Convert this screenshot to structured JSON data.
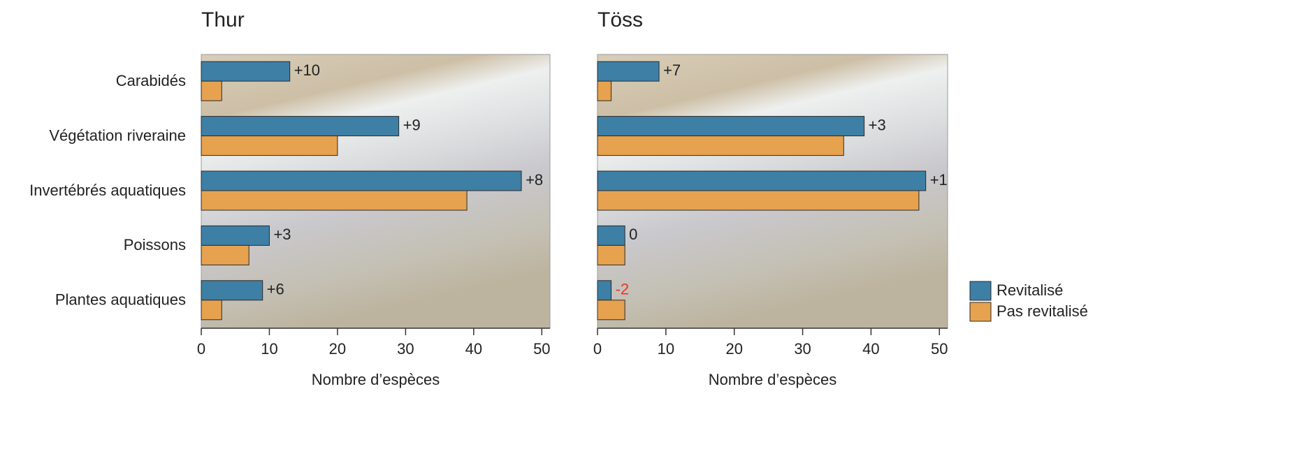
{
  "chart_data": [
    {
      "type": "barh",
      "title": "Thur",
      "xlabel": "Nombre d’espèces",
      "categories": [
        "Carabidés",
        "Végétation riveraine",
        "Invertébrés aquatiques",
        "Poissons",
        "Plantes aquatiques"
      ],
      "series": [
        {
          "color": "#3e7fa5",
          "values": [
            13,
            29,
            47,
            10,
            9
          ]
        },
        {
          "color": "#e6a24f",
          "values": [
            3,
            20,
            39,
            7,
            3
          ]
        }
      ],
      "annotations": [
        {
          "text": "+10",
          "color": "#222222"
        },
        {
          "text": "+9",
          "color": "#222222"
        },
        {
          "text": "+8",
          "color": "#222222"
        },
        {
          "text": "+3",
          "color": "#222222"
        },
        {
          "text": "+6",
          "color": "#222222"
        }
      ],
      "xlim": [
        0,
        51.2
      ],
      "xticks": [
        0,
        10,
        20,
        30,
        40,
        50
      ]
    },
    {
      "type": "barh",
      "title": "Töss",
      "xlabel": "Nombre d’espèces",
      "series": [
        {
          "name": "Revitalisé",
          "color": "#3e7fa5",
          "values": [
            9,
            39,
            48,
            4,
            2
          ]
        },
        {
          "name": "Pas revitalisé",
          "color": "#e6a24f",
          "values": [
            2,
            36,
            47,
            4,
            4
          ]
        }
      ],
      "annotations": [
        {
          "text": "+7",
          "color": "#222222"
        },
        {
          "text": "+3",
          "color": "#222222"
        },
        {
          "text": "+1",
          "color": "#222222"
        },
        {
          "text": "0",
          "color": "#222222"
        },
        {
          "text": "-2",
          "color": "#e8352b"
        }
      ],
      "xlim": [
        0,
        51.2
      ],
      "xticks": [
        0,
        10,
        20,
        30,
        40,
        50
      ],
      "legend": "bottom-right"
    }
  ]
}
